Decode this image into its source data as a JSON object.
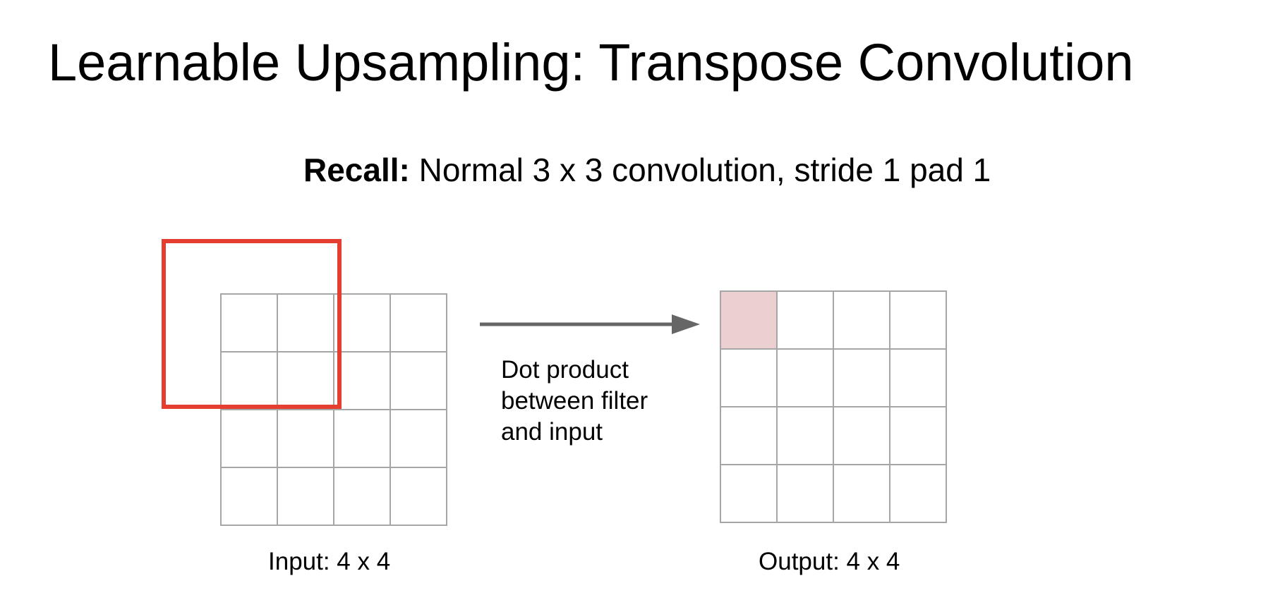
{
  "slide": {
    "title": "Learnable Upsampling: Transpose Convolution",
    "subtitle_bold": "Recall:",
    "subtitle_rest": " Normal 3 x 3 convolution, stride 1 pad 1"
  },
  "diagram": {
    "input_label": "Input: 4 x 4",
    "output_label": "Output: 4 x 4",
    "operation_lines": [
      "Dot product",
      "between filter",
      "and input"
    ],
    "input_grid": {
      "rows": 4,
      "cols": 4
    },
    "output_grid": {
      "rows": 4,
      "cols": 4,
      "highlighted_cell": [
        0,
        0
      ]
    },
    "colors": {
      "grid_line": "#a6a6a6",
      "filter_outline": "#e53d30",
      "highlight_fill": "#ebcfd1",
      "arrow": "#666666"
    }
  }
}
